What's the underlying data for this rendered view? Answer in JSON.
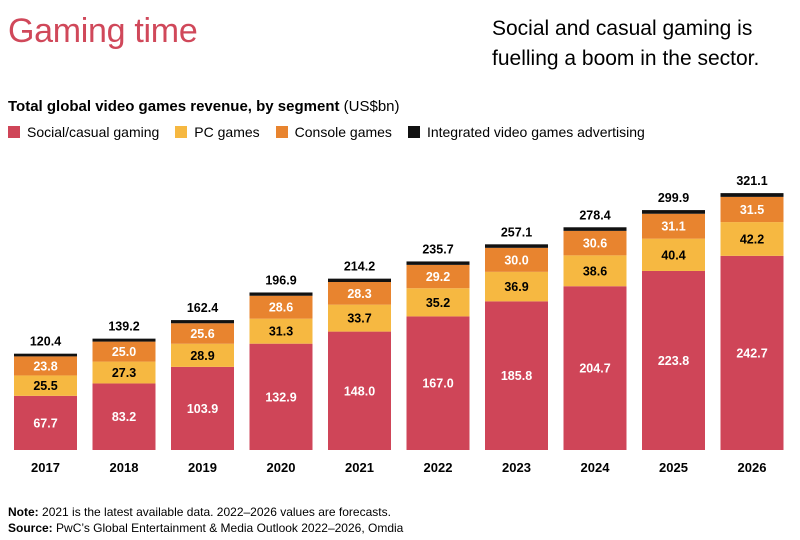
{
  "header": {
    "title": "Gaming time",
    "tagline": "Social and casual gaming is fuelling a boom in the sector."
  },
  "chart_data": {
    "type": "bar",
    "stacked": true,
    "title": "Total global video games revenue, by segment",
    "unit": "(US$bn)",
    "categories": [
      "2017",
      "2018",
      "2019",
      "2020",
      "2021",
      "2022",
      "2023",
      "2024",
      "2025",
      "2026"
    ],
    "totals": [
      120.4,
      139.2,
      162.4,
      196.9,
      214.2,
      235.7,
      257.1,
      278.4,
      299.9,
      321.1
    ],
    "series": [
      {
        "name": "Social/casual gaming",
        "color": "#cf4558",
        "values": [
          67.7,
          83.2,
          103.9,
          132.9,
          148.0,
          167.0,
          185.8,
          204.7,
          223.8,
          242.7
        ]
      },
      {
        "name": "PC games",
        "color": "#f6b841",
        "values": [
          25.5,
          27.3,
          28.9,
          31.3,
          33.7,
          35.2,
          36.9,
          38.6,
          40.4,
          42.2
        ]
      },
      {
        "name": "Console games",
        "color": "#e8842f",
        "values": [
          23.8,
          25.0,
          25.6,
          28.6,
          28.3,
          29.2,
          30.0,
          30.6,
          31.1,
          31.5
        ]
      },
      {
        "name": "Integrated video games advertising",
        "color": "#111111",
        "values": [
          3.4,
          3.7,
          4.0,
          4.1,
          4.2,
          4.3,
          4.4,
          4.5,
          4.6,
          4.7
        ]
      }
    ],
    "ylim": [
      0,
      340
    ],
    "grid": false,
    "legend_position": "top-left"
  },
  "notes": {
    "note_label": "Note:",
    "note_text": "2021 is the latest available data. 2022–2026 values are forecasts.",
    "source_label": "Source:",
    "source_text": "PwC’s Global Entertainment & Media Outlook 2022–2026, Omdia"
  }
}
